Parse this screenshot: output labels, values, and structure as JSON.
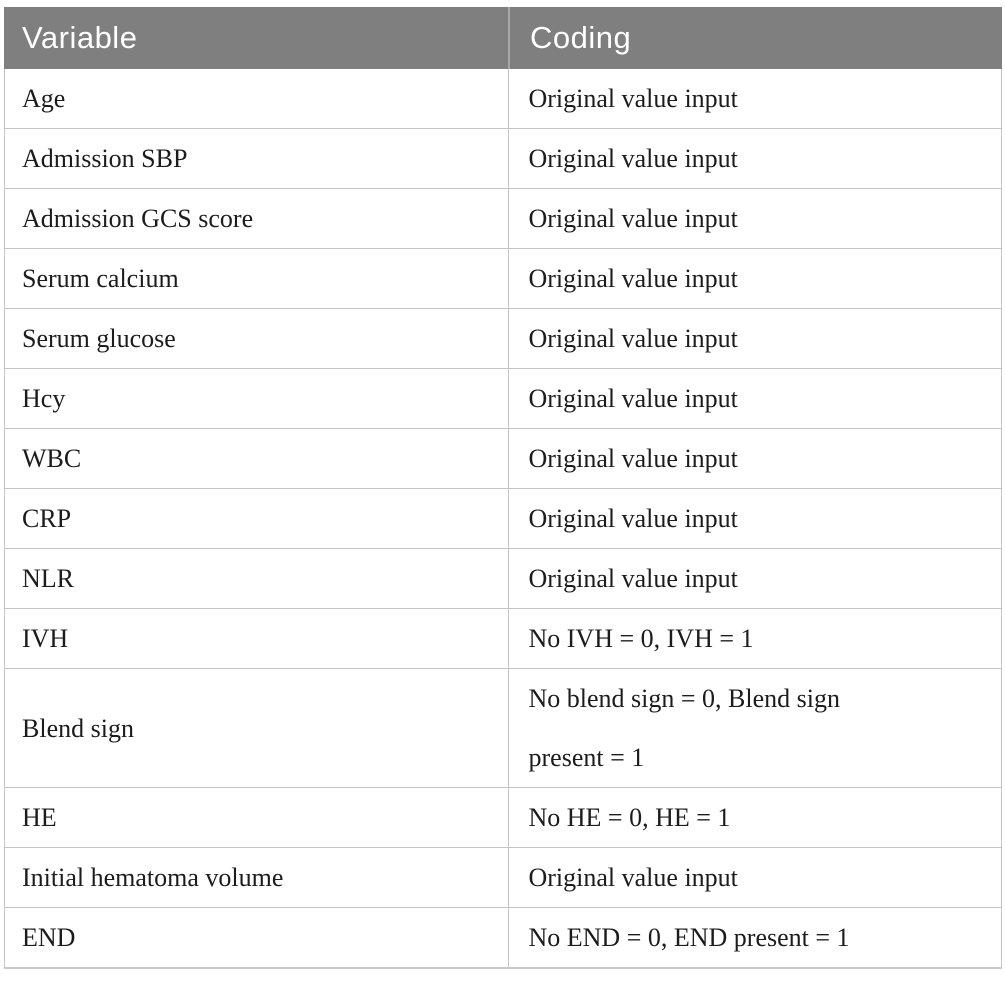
{
  "page": {
    "background_color": "#ffffff"
  },
  "table": {
    "header_bg_color": "#7f7f7f",
    "header_text_color": "#ffffff",
    "border_color": "#c4c4c4",
    "body_text_color": "#1c1c1c",
    "columns": [
      {
        "label": "Variable"
      },
      {
        "label": "Coding"
      }
    ],
    "rows": [
      {
        "variable": "Age",
        "coding": "Original value input"
      },
      {
        "variable": "Admission SBP",
        "coding": "Original value input"
      },
      {
        "variable": "Admission GCS score",
        "coding": "Original value input"
      },
      {
        "variable": "Serum calcium",
        "coding": "Original value input"
      },
      {
        "variable": "Serum glucose",
        "coding": "Original value input"
      },
      {
        "variable": "Hcy",
        "coding": "Original value input"
      },
      {
        "variable": "WBC",
        "coding": "Original value input"
      },
      {
        "variable": "CRP",
        "coding": "Original value input"
      },
      {
        "variable": "NLR",
        "coding": "Original value input"
      },
      {
        "variable": "IVH",
        "coding": "No IVH = 0, IVH = 1"
      },
      {
        "variable": "Blend sign",
        "coding": "No blend sign = 0, Blend sign\npresent = 1"
      },
      {
        "variable": "HE",
        "coding": "No HE = 0, HE = 1"
      },
      {
        "variable": "Initial hematoma volume",
        "coding": "Original value input"
      },
      {
        "variable": "END",
        "coding": "No END = 0, END present = 1"
      }
    ]
  }
}
